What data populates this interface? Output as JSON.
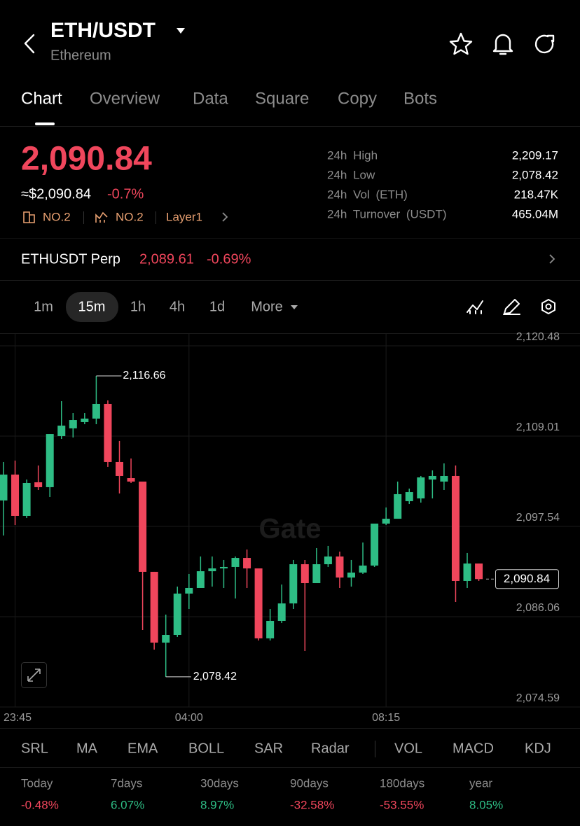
{
  "header": {
    "pair": "ETH/USDT",
    "name": "Ethereum"
  },
  "tabs": [
    "Chart",
    "Overview",
    "Data",
    "Square",
    "Copy",
    "Bots"
  ],
  "price": {
    "last": "2,090.84",
    "usd": "≈$2,090.84",
    "change": "-0.7%"
  },
  "badges": [
    "NO.2",
    "NO.2",
    "Layer1"
  ],
  "stats": [
    {
      "label": "24h High",
      "value": "2,209.17"
    },
    {
      "label": "24h Low",
      "value": "2,078.42"
    },
    {
      "label": "24h Vol (ETH)",
      "value": "218.47K"
    },
    {
      "label": "24h Turnover (USDT)",
      "value": "465.04M"
    }
  ],
  "perp": {
    "name": "ETHUSDT Perp",
    "price": "2,089.61",
    "change": "-0.69%"
  },
  "intervals": [
    "1m",
    "15m",
    "1h",
    "4h",
    "1d",
    "More"
  ],
  "chart": {
    "type": "candlestick",
    "watermark": "Gate",
    "ylim": [
      2074.59,
      2120.48
    ],
    "yticks": [
      {
        "value": 2074.59,
        "label": "2,074.59"
      },
      {
        "value": 2086.06,
        "label": "2,086.06"
      },
      {
        "value": 2097.54,
        "label": "2,097.54"
      },
      {
        "value": 2109.01,
        "label": "2,109.01"
      },
      {
        "value": 2120.48,
        "label": "2,120.48"
      }
    ],
    "xticks": [
      {
        "value": 1,
        "label": "23:45"
      },
      {
        "value": 16,
        "label": "04:00"
      },
      {
        "value": 33,
        "label": "08:15"
      }
    ],
    "open": [
      2100.83,
      2104.12,
      2098.87,
      2103.14,
      2102.52,
      2109.01,
      2109.99,
      2110.79,
      2111.23,
      2113.1,
      2105.72,
      2103.67,
      2103.23,
      2091.76,
      2082.77,
      2083.75,
      2089.0,
      2089.71,
      2091.84,
      2092.2,
      2092.38,
      2093.53,
      2092.2,
      2083.31,
      2085.53,
      2087.75,
      2092.73,
      2090.33,
      2092.73,
      2093.71,
      2091.04,
      2091.67,
      2092.56,
      2097.89,
      2098.51,
      2100.74,
      2101.09,
      2103.49,
      2103.23,
      2103.94,
      2090.6,
      2092.82
    ],
    "high": [
      2105.72,
      2105.9,
      2103.49,
      2105.27,
      2109.27,
      2113.45,
      2111.94,
      2111.94,
      2116.66,
      2113.54,
      2108.39,
      2106.16,
      2103.23,
      2091.76,
      2086.33,
      2089.89,
      2091.49,
      2093.71,
      2093.71,
      2093.27,
      2093.71,
      2094.6,
      2092.2,
      2087.04,
      2090.15,
      2093.27,
      2093.27,
      2094.78,
      2095.05,
      2094.33,
      2093.27,
      2095.49,
      2097.89,
      2099.94,
      2103.23,
      2102.34,
      2103.94,
      2104.65,
      2105.54,
      2105.27,
      2094.16,
      2092.82
    ],
    "low": [
      2096.38,
      2097.71,
      2098.6,
      2102.16,
      2101.27,
      2108.65,
      2108.83,
      2110.52,
      2110.52,
      2105.1,
      2101.72,
      2103.05,
      2084.37,
      2081.88,
      2078.42,
      2083.49,
      2087.04,
      2089.71,
      2089.89,
      2089.71,
      2088.38,
      2089.71,
      2083.04,
      2083.04,
      2085.26,
      2087.04,
      2081.71,
      2090.33,
      2092.38,
      2089.71,
      2089.89,
      2091.49,
      2092.38,
      2097.71,
      2098.51,
      2100.38,
      2100.56,
      2101.09,
      2102.16,
      2087.93,
      2089.71,
      2090.6
    ],
    "close": [
      2104.12,
      2098.87,
      2103.05,
      2102.52,
      2109.27,
      2110.34,
      2111.05,
      2111.23,
      2113.1,
      2105.72,
      2103.94,
      2103.23,
      2091.76,
      2082.77,
      2083.75,
      2089.0,
      2089.71,
      2091.84,
      2092.2,
      2092.38,
      2093.53,
      2092.2,
      2083.31,
      2085.53,
      2087.75,
      2092.73,
      2090.33,
      2092.73,
      2093.71,
      2091.04,
      2091.67,
      2092.56,
      2097.89,
      2098.51,
      2101.63,
      2101.89,
      2103.76,
      2103.94,
      2103.94,
      2090.6,
      2092.82,
      2090.84
    ],
    "high_label": {
      "value": 2116.66,
      "label": "2,116.66"
    },
    "low_label": {
      "value": 2078.42,
      "label": "2,078.42"
    },
    "last_price": {
      "value": 2090.84,
      "label": "2,090.84"
    }
  },
  "indicators": [
    "SRL",
    "MA",
    "EMA",
    "BOLL",
    "SAR",
    "Radar",
    "VOL",
    "MACD",
    "KDJ"
  ],
  "performance": [
    {
      "period": "Today",
      "change": "-0.48%"
    },
    {
      "period": "7days",
      "change": "6.07%"
    },
    {
      "period": "30days",
      "change": "8.97%"
    },
    {
      "period": "90days",
      "change": "-32.58%"
    },
    {
      "period": "180days",
      "change": "-53.55%"
    },
    {
      "period": "year",
      "change": "8.05%"
    }
  ]
}
